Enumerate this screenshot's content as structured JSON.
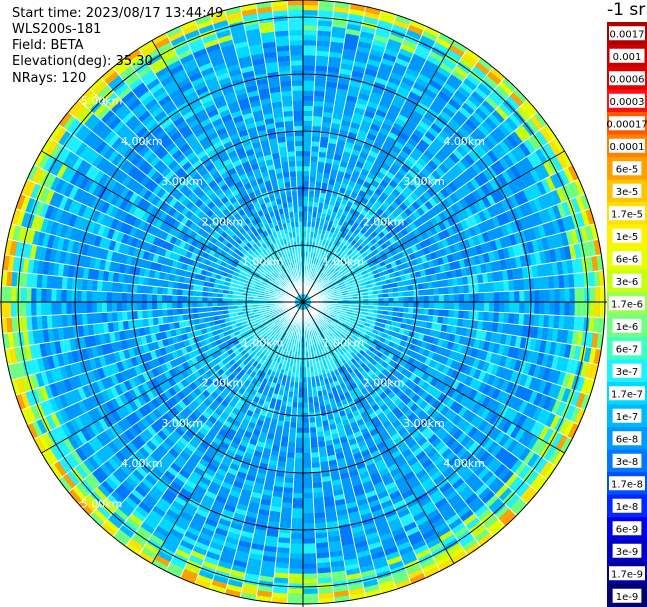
{
  "info": {
    "start_time": "Start time: 2023/08/17 13:44:49",
    "device": "WLS200s-181",
    "field": "Field: BETA",
    "elevation": "Elevation(deg): 35.30",
    "nrays": "NRays: 120"
  },
  "colorbar": {
    "unit": "-1 sr",
    "labels": [
      "0.0017",
      "0.001",
      "0.0006",
      "0.0003",
      "0.00017",
      "0.0001",
      "6e-5",
      "3e-5",
      "1.7e-5",
      "1e-5",
      "6e-6",
      "3e-6",
      "1.7e-6",
      "1e-6",
      "6e-7",
      "3e-7",
      "1.7e-7",
      "1e-7",
      "6e-8",
      "3e-8",
      "1.7e-8",
      "1e-8",
      "6e-9",
      "3e-9",
      "1.7e-9",
      "1e-9"
    ],
    "colors": [
      "#b00000",
      "#c80000",
      "#e00000",
      "#ff1010",
      "#ff5a00",
      "#ff8000",
      "#ffa000",
      "#ffc400",
      "#ffe000",
      "#fff200",
      "#e8ff00",
      "#c8ff10",
      "#9aff50",
      "#70ff80",
      "#40ffc0",
      "#20f0ff",
      "#00d8ff",
      "#00b8ff",
      "#0098ff",
      "#0078ff",
      "#0050ff",
      "#0028ff",
      "#0000e8",
      "#0000c0",
      "#000098",
      "#000070"
    ]
  },
  "chart_data": {
    "type": "heatmap",
    "subtype": "polar-ppi",
    "nrays": 120,
    "range_km": [
      0,
      5.3
    ],
    "ring_labels": [
      "1.00km",
      "2.00km",
      "3.00km",
      "4.00km",
      "5.00km"
    ],
    "ring_label_count_per_ring": [
      4,
      4,
      4,
      4,
      2
    ],
    "crosshair": true,
    "colormap": "blue-cyan-green-yellow-red"
  }
}
